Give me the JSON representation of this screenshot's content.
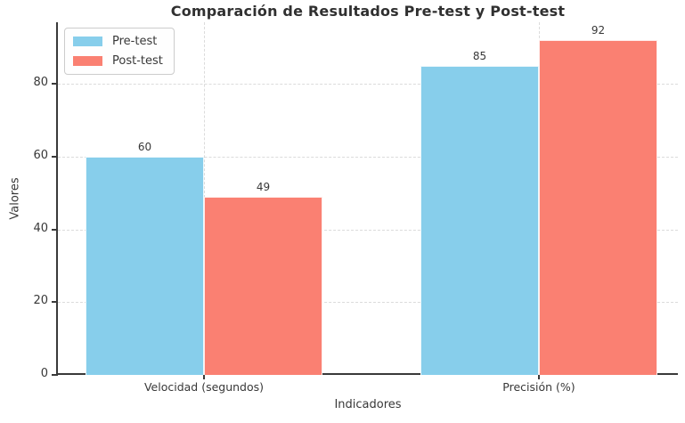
{
  "chart_data": {
    "type": "bar",
    "title": "Comparación de Resultados Pre-test y Post-test",
    "xlabel": "Indicadores",
    "ylabel": "Valores",
    "categories": [
      "Velocidad (segundos)",
      "Precisión (%)"
    ],
    "series": [
      {
        "name": "Pre-test",
        "color": "#87CEEB",
        "values": [
          60,
          85
        ]
      },
      {
        "name": "Post-test",
        "color": "#FA8072",
        "values": [
          49,
          92
        ]
      }
    ],
    "yticks": [
      0,
      20,
      40,
      60,
      80
    ],
    "ylim": [
      0,
      97
    ],
    "grid": true,
    "grid_style": "dashed",
    "legend_position": "upper left",
    "value_labels_shown": true
  }
}
